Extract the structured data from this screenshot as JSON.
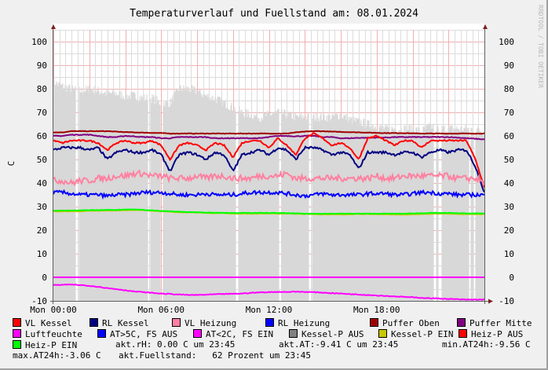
{
  "chart_data": {
    "type": "line",
    "title": "Temperaturverlauf und Fuellstand am: 08.01.2024",
    "ylabel": "C",
    "xlabel": "",
    "watermark": "RRDTOOL / TOBI OETIKER",
    "ylim": [
      -10,
      105
    ],
    "yticks": [
      -10,
      0,
      10,
      20,
      30,
      40,
      50,
      60,
      70,
      80,
      90,
      100
    ],
    "xlim_hours": [
      0,
      24
    ],
    "xticks": [
      {
        "h": 0,
        "label": "Mon 00:00"
      },
      {
        "h": 6,
        "label": "Mon 06:00"
      },
      {
        "h": 12,
        "label": "Mon 12:00"
      },
      {
        "h": 18,
        "label": "Mon 18:00"
      }
    ],
    "grid": true,
    "sample_step_hours": 0.5,
    "area": {
      "name": "Kessel-P AUS",
      "color": "#d8d8d8",
      "values": [
        83,
        81,
        80,
        79,
        80,
        79,
        78,
        78,
        77,
        77,
        76,
        76,
        74,
        74,
        80,
        80,
        79,
        77,
        76,
        74,
        72,
        70,
        69,
        68,
        69,
        70,
        69,
        68,
        68,
        68,
        68,
        68,
        69,
        67,
        66,
        65,
        64,
        63,
        63,
        63,
        63,
        62,
        64,
        63,
        63,
        63,
        63,
        63,
        62
      ],
      "gaps_hours": [
        [
          1.25,
          1.4
        ],
        [
          5.25,
          5.4
        ],
        [
          5.95,
          6.1
        ],
        [
          10.15,
          10.3
        ],
        [
          12.55,
          12.7
        ],
        [
          14.25,
          14.4
        ],
        [
          21.2,
          21.3
        ],
        [
          21.45,
          21.6
        ],
        [
          23.15,
          23.25
        ],
        [
          23.4,
          23.5
        ]
      ]
    },
    "series": [
      {
        "name": "Puffer Oben",
        "color": "#a00000",
        "noise": 0.1,
        "values": [
          61.5,
          61.5,
          62,
          62,
          62,
          62,
          62,
          61.8,
          61.6,
          61.5,
          61.4,
          61.3,
          61.2,
          61,
          61,
          61,
          61,
          61,
          61,
          61,
          61,
          61,
          61,
          61,
          61,
          61,
          61,
          61.5,
          61.8,
          62,
          62,
          61.8,
          61.7,
          61.6,
          61.5,
          61.4,
          61.3,
          61.2,
          61.2,
          61.2,
          61.1,
          61,
          61,
          61,
          61,
          61,
          61,
          61,
          61
        ]
      },
      {
        "name": "Puffer Mitte",
        "color": "#800080",
        "noise": 0.15,
        "values": [
          60,
          60,
          60.5,
          60.5,
          60.5,
          60,
          59.5,
          59.5,
          60,
          59.8,
          59.5,
          59.5,
          59,
          59,
          59.5,
          59.5,
          59.5,
          59.5,
          59,
          59,
          59,
          59,
          59,
          59,
          59.5,
          60,
          60,
          59.8,
          60,
          60,
          59.5,
          59.5,
          59,
          59,
          59.2,
          59.2,
          59.3,
          59.3,
          59.5,
          59.5,
          59.5,
          59.5,
          59.5,
          59.5,
          59.5,
          59.3,
          59,
          58.8,
          58.5
        ]
      },
      {
        "name": "VL Kessel",
        "color": "#ff0000",
        "noise": 0.3,
        "values": [
          58,
          57,
          58,
          58,
          58,
          57,
          54,
          57,
          58,
          57,
          57,
          58,
          56,
          50,
          56,
          57,
          56,
          54,
          57,
          56,
          51,
          57,
          58,
          58,
          55,
          59,
          56,
          52,
          59,
          61,
          59,
          56,
          57,
          55,
          50,
          59,
          60,
          58,
          56,
          58,
          58,
          55,
          58,
          58,
          58,
          58,
          58,
          50,
          38
        ]
      },
      {
        "name": "RL Kessel",
        "color": "#000080",
        "noise": 0.5,
        "values": [
          54,
          55,
          55,
          55,
          54,
          55,
          50,
          53,
          54,
          53,
          53,
          54,
          52,
          45,
          52,
          53,
          52,
          50,
          53,
          52,
          45,
          52,
          53,
          54,
          52,
          55,
          54,
          50,
          55,
          55,
          54,
          52,
          53,
          52,
          46,
          53,
          53,
          53,
          52,
          53,
          53,
          51,
          53,
          54,
          53,
          54,
          54,
          47,
          36
        ]
      },
      {
        "name": "VL Heizung",
        "color": "#ff80a0",
        "noise": 1.3,
        "values": [
          41,
          41,
          40,
          41,
          41,
          42,
          42,
          43,
          43,
          44,
          44,
          43,
          43,
          42,
          42,
          42,
          43,
          42,
          43,
          43,
          42,
          42,
          42,
          43,
          43,
          43,
          44,
          42,
          42,
          42,
          42,
          42,
          42,
          42,
          42,
          42,
          43,
          42,
          42,
          43,
          43,
          43,
          43,
          43,
          43,
          42,
          42,
          42,
          40
        ]
      },
      {
        "name": "RL Heizung",
        "color": "#0000ff",
        "noise": 0.8,
        "values": [
          36,
          36,
          35.5,
          35,
          35,
          35,
          34.5,
          35,
          35,
          35.5,
          36,
          36,
          36,
          35.5,
          35,
          35,
          35,
          35.5,
          35,
          35,
          35,
          35.5,
          36,
          36,
          36,
          36,
          35.5,
          35,
          34.5,
          35,
          35.5,
          35,
          35,
          35,
          35,
          35.5,
          35.5,
          35.5,
          35,
          35,
          35.5,
          36,
          36,
          35.5,
          35.5,
          35,
          35,
          35,
          35
        ]
      },
      {
        "name": "Kessel-P EIN",
        "color": "#c8c800",
        "noise": 0.1,
        "values": [
          28,
          28,
          28,
          28,
          28.2,
          28.2,
          28.3,
          28.3,
          28.5,
          28.5,
          28.5,
          28.2,
          28,
          27.8,
          27.6,
          27.5,
          27.5,
          27.3,
          27.2,
          27.2,
          27,
          27,
          27,
          27,
          27,
          27,
          27,
          27,
          26.8,
          26.8,
          26.7,
          26.7,
          26.7,
          26.7,
          26.8,
          26.8,
          26.8,
          26.7,
          26.6,
          26.6,
          26.7,
          26.8,
          26.9,
          27,
          27,
          26.9,
          26.8,
          26.8,
          26.8
        ]
      },
      {
        "name": "Heiz-P EIN",
        "color": "#00ff00",
        "noise": 0.1,
        "values": [
          28.3,
          28.3,
          28.3,
          28.4,
          28.5,
          28.5,
          28.6,
          28.6,
          28.8,
          28.8,
          28.6,
          28.4,
          28.2,
          28,
          27.8,
          27.7,
          27.6,
          27.5,
          27.4,
          27.4,
          27.3,
          27.3,
          27.3,
          27.3,
          27.3,
          27.3,
          27.2,
          27.1,
          27,
          27,
          27,
          27,
          27,
          27,
          27,
          27,
          27,
          27,
          27,
          27,
          27.1,
          27.2,
          27.3,
          27.3,
          27.3,
          27.2,
          27.1,
          27.1,
          27.1
        ]
      },
      {
        "name": "Luftfeuchte",
        "color": "#ff00ff",
        "noise": 0,
        "values": [
          0,
          0,
          0,
          0,
          0,
          0,
          0,
          0,
          0,
          0,
          0,
          0,
          0,
          0,
          0,
          0,
          0,
          0,
          0,
          0,
          0,
          0,
          0,
          0,
          0,
          0,
          0,
          0,
          0,
          0,
          0,
          0,
          0,
          0,
          0,
          0,
          0,
          0,
          0,
          0,
          0,
          0,
          0,
          0,
          0,
          0,
          0,
          0,
          0
        ]
      },
      {
        "name": "AT<2C, FS EIN",
        "color": "#ff00ff",
        "noise": 0.15,
        "values": [
          -3.3,
          -3.2,
          -3.1,
          -3.3,
          -3.6,
          -4,
          -4.6,
          -5,
          -5.5,
          -6,
          -6.3,
          -6.6,
          -6.9,
          -7.1,
          -7.3,
          -7.5,
          -7.5,
          -7.4,
          -7.2,
          -7.1,
          -7,
          -6.9,
          -6.6,
          -6.4,
          -6.3,
          -6.2,
          -6.2,
          -6.1,
          -6.2,
          -6.3,
          -6.5,
          -6.7,
          -6.9,
          -7.1,
          -7.3,
          -7.5,
          -7.7,
          -7.9,
          -8.1,
          -8.3,
          -8.5,
          -8.7,
          -8.9,
          -9,
          -9.2,
          -9.3,
          -9.5,
          -9.5,
          -9.41
        ]
      }
    ]
  },
  "legend": {
    "items": [
      {
        "label": "VL Kessel",
        "color": "#ff0000"
      },
      {
        "label": "RL Kessel",
        "color": "#000080"
      },
      {
        "label": "VL Heizung",
        "color": "#ff80a0"
      },
      {
        "label": "RL Heizung",
        "color": "#0000ff"
      },
      {
        "label": "Puffer Oben",
        "color": "#a00000"
      },
      {
        "label": "Puffer Mitte",
        "color": "#800080"
      },
      {
        "label": "Luftfeuchte",
        "color": "#ff00ff"
      },
      {
        "label": "AT>5C, FS AUS",
        "color": "#0000ff"
      },
      {
        "label": "AT<2C, FS EIN",
        "color": "#ff00ff"
      },
      {
        "label": "Kessel-P AUS",
        "color": "#808080"
      },
      {
        "label": "Kessel-P EIN",
        "color": "#c8c800"
      },
      {
        "label": "Heiz-P AUS",
        "color": "#ff0000"
      },
      {
        "label": "Heiz-P EIN",
        "color": "#00ff00"
      }
    ],
    "stats": {
      "akt_rh": "akt.rH: 0.00 C um 23:45",
      "akt_at": "akt.AT:-9.41 C um 23:45",
      "min_at": "min.AT24h:-9.56 C",
      "max_at": "max.AT24h:-3.06 C",
      "fuellstand": "akt.Fuellstand:   62 Prozent um 23:45"
    }
  }
}
